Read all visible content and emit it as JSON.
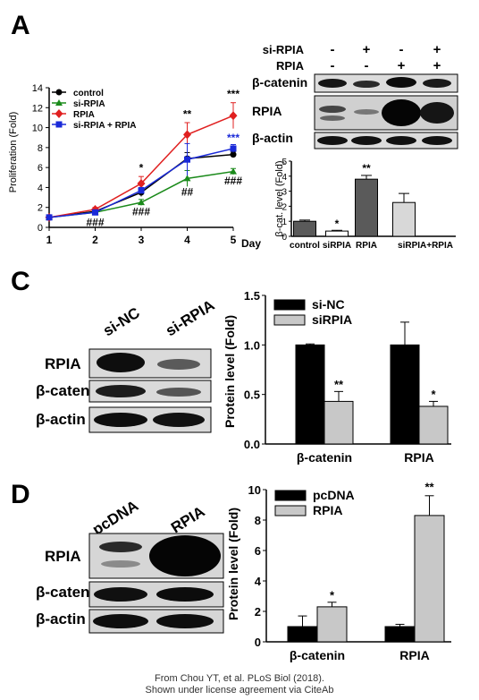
{
  "panels": {
    "a": "A",
    "c": "C",
    "d": "D"
  },
  "blotA": {
    "rows": [
      {
        "label": "si-RPIA",
        "signs": [
          "-",
          "+",
          "-",
          "+"
        ]
      },
      {
        "label": "RPIA",
        "signs": [
          "-",
          "-",
          "+",
          "+"
        ]
      }
    ],
    "bands": [
      "β-catenin",
      "RPIA",
      "β-actin"
    ]
  },
  "blotC": {
    "lanes": [
      "si-NC",
      "si-RPIA"
    ],
    "bands": [
      "RPIA",
      "β-catenin",
      "β-actin"
    ]
  },
  "blotD": {
    "lanes": [
      "pcDNA",
      "RPIA"
    ],
    "bands": [
      "RPIA",
      "β-catenin",
      "β-actin"
    ]
  },
  "colors": {
    "control": "#000000",
    "si_rpia": "#1a8a1a",
    "rpia": "#e02020",
    "combo": "#1a2ad8",
    "bar_dark": "#5a5a5a",
    "bar_grey": "#c0c0c0",
    "blot_bg": "#d8d8d8",
    "band": "#1a1a1a"
  },
  "chart_data": [
    {
      "id": "prolif",
      "type": "line",
      "ylabel": "Proliferation (Fold)",
      "xlabel": "Day",
      "x": [
        1,
        2,
        3,
        4,
        5
      ],
      "ylim": [
        0,
        14
      ],
      "yticks": [
        "0",
        "2",
        "4",
        "6",
        "8",
        "10",
        "12",
        "14"
      ],
      "xticks": [
        "1",
        "2",
        "3",
        "4",
        "5"
      ],
      "legend_position": "top-left",
      "series": [
        {
          "name": "control",
          "color_key": "control",
          "marker": "circle",
          "values": [
            1.0,
            1.6,
            3.5,
            6.9,
            7.3
          ],
          "errors": [
            0.1,
            0.2,
            0.4,
            0.6,
            0.3
          ]
        },
        {
          "name": "si-RPIA",
          "color_key": "si_rpia",
          "marker": "triangle",
          "values": [
            1.0,
            1.5,
            2.5,
            4.9,
            5.6
          ],
          "errors": [
            0.1,
            0.2,
            0.3,
            0.8,
            0.3
          ]
        },
        {
          "name": "RPIA",
          "color_key": "rpia",
          "marker": "diamond",
          "values": [
            1.0,
            1.8,
            4.4,
            9.3,
            11.2
          ],
          "errors": [
            0.1,
            0.2,
            0.7,
            1.2,
            1.3
          ]
        },
        {
          "name": "si-RPIA + RPIA",
          "color_key": "combo",
          "marker": "square",
          "values": [
            1.0,
            1.5,
            3.7,
            6.8,
            7.9
          ],
          "errors": [
            0.1,
            0.2,
            0.3,
            1.6,
            0.4
          ]
        }
      ],
      "annotations": [
        {
          "text": "*",
          "x": 3,
          "y": 5.6,
          "color_key": "control"
        },
        {
          "text": "**",
          "x": 4,
          "y": 11.0,
          "color_key": "control"
        },
        {
          "text": "***",
          "x": 5,
          "y": 13.0,
          "color_key": "control"
        },
        {
          "text": "***",
          "x": 5,
          "y": 8.6,
          "color_key": "combo"
        },
        {
          "text": "###",
          "x": 2,
          "y": 0.15,
          "color_key": "control"
        },
        {
          "text": "###",
          "x": 3,
          "y": 1.2,
          "color_key": "control"
        },
        {
          "text": "##",
          "x": 4,
          "y": 3.2,
          "color_key": "control"
        },
        {
          "text": "###",
          "x": 5,
          "y": 4.3,
          "color_key": "control"
        }
      ]
    },
    {
      "id": "bcat",
      "type": "bar",
      "ylabel": "β-cat. level (Fold)",
      "xlabel": "",
      "categories": [
        "control",
        "siRPIA",
        "RPIA",
        "siRPIA+RPIA"
      ],
      "ylim": [
        0,
        5
      ],
      "yticks": [
        "0",
        "1",
        "2",
        "3",
        "4",
        "5"
      ],
      "values": [
        1.0,
        0.35,
        3.8,
        2.25
      ],
      "errors": [
        0.08,
        0.05,
        0.25,
        0.6
      ],
      "color_keys": [
        "bar_dark",
        "bar_dark",
        "bar_dark",
        "bar_grey"
      ],
      "fills": [
        "#5a5a5a",
        "#ffffff",
        "#5a5a5a",
        "#d8d8d8"
      ],
      "annotations": [
        {
          "text": "*",
          "x": "siRPIA",
          "y": 0.6
        },
        {
          "text": "**",
          "x": "RPIA",
          "y": 4.3
        }
      ]
    },
    {
      "id": "panelC",
      "type": "bar",
      "ylabel": "Protein level (Fold)",
      "xlabel": "",
      "categories": [
        "β-catenin",
        "RPIA"
      ],
      "ylim": [
        0,
        1.5
      ],
      "yticks": [
        "0.0",
        "0.5",
        "1.0",
        "1.5"
      ],
      "legend_position": "top-left",
      "series": [
        {
          "name": "si-NC",
          "color": "#000000",
          "values": [
            1.0,
            1.0
          ],
          "errors": [
            0.01,
            0.23
          ]
        },
        {
          "name": "siRPIA",
          "color": "#c8c8c8",
          "values": [
            0.43,
            0.38
          ],
          "errors": [
            0.1,
            0.05
          ]
        }
      ],
      "annotations": [
        {
          "text": "**",
          "category": "β-catenin",
          "series": 1,
          "y": 0.56
        },
        {
          "text": "*",
          "category": "RPIA",
          "series": 1,
          "y": 0.46
        }
      ]
    },
    {
      "id": "panelD",
      "type": "bar",
      "ylabel": "Protein level (Fold)",
      "xlabel": "",
      "categories": [
        "β-catenin",
        "RPIA"
      ],
      "ylim": [
        0,
        10
      ],
      "yticks": [
        "0",
        "2",
        "4",
        "6",
        "8",
        "10"
      ],
      "legend_position": "top-left",
      "series": [
        {
          "name": "pcDNA",
          "color": "#000000",
          "values": [
            1.0,
            1.0
          ],
          "errors": [
            0.7,
            0.15
          ]
        },
        {
          "name": "RPIA",
          "color": "#c8c8c8",
          "values": [
            2.3,
            8.3
          ],
          "errors": [
            0.3,
            1.3
          ]
        }
      ],
      "annotations": [
        {
          "text": "*",
          "category": "β-catenin",
          "series": 1,
          "y": 2.8
        },
        {
          "text": "**",
          "category": "RPIA",
          "series": 1,
          "y": 9.9
        }
      ]
    }
  ],
  "credit": {
    "line1": "From Chou YT, et al. PLoS Biol (2018).",
    "line2": "Shown under license agreement via CiteAb"
  }
}
